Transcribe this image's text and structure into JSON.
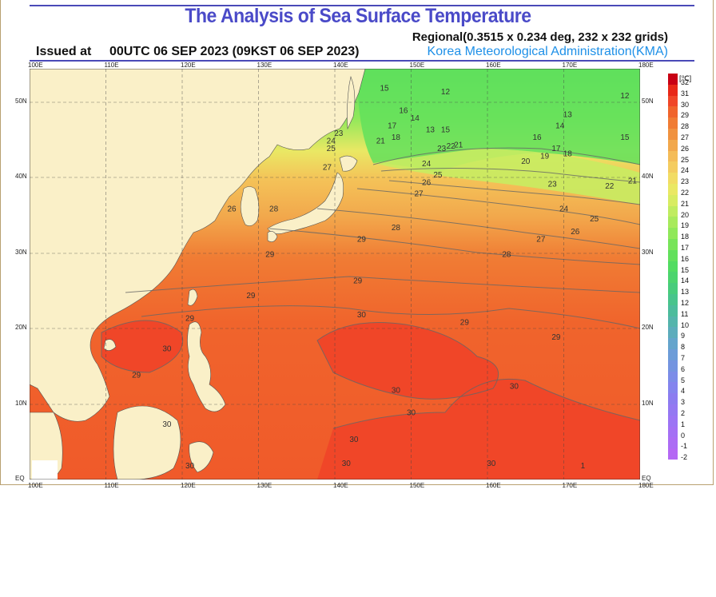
{
  "header": {
    "title": "The Analysis of Sea Surface Temperature",
    "regional": "Regional(0.3515 x 0.234 deg, 232 x 232 grids)",
    "issued_label": "Issued at",
    "issued_time": "00UTC 06 SEP 2023 (09KST 06 SEP 2023)",
    "agency": "Korea Meteorological Administration(KMA)"
  },
  "map": {
    "lon_labels": [
      "100E",
      "110E",
      "120E",
      "130E",
      "140E",
      "150E",
      "160E",
      "170E",
      "180E"
    ],
    "lat_labels_left": [
      "50N",
      "40N",
      "30N",
      "20N",
      "10N",
      "EQ"
    ],
    "lat_labels_right": [
      "50N",
      "40N",
      "30N",
      "20N",
      "10N",
      "EQ"
    ],
    "contour_labels": [
      {
        "t": "15",
        "lon": 146.5,
        "lat": 51.5
      },
      {
        "t": "16",
        "lon": 149.0,
        "lat": 48.5
      },
      {
        "t": "14",
        "lon": 150.5,
        "lat": 47.5
      },
      {
        "t": "12",
        "lon": 154.5,
        "lat": 51.0
      },
      {
        "t": "13",
        "lon": 152.5,
        "lat": 46.0
      },
      {
        "t": "15",
        "lon": 154.5,
        "lat": 46.0
      },
      {
        "t": "17",
        "lon": 147.5,
        "lat": 46.5
      },
      {
        "t": "18",
        "lon": 148.0,
        "lat": 45.0
      },
      {
        "t": "21",
        "lon": 146.0,
        "lat": 44.5
      },
      {
        "t": "23",
        "lon": 140.5,
        "lat": 45.5
      },
      {
        "t": "24",
        "lon": 139.5,
        "lat": 44.5
      },
      {
        "t": "25",
        "lon": 139.5,
        "lat": 43.5
      },
      {
        "t": "27",
        "lon": 139.0,
        "lat": 41.0
      },
      {
        "t": "23",
        "lon": 154.0,
        "lat": 43.5
      },
      {
        "t": "22",
        "lon": 155.2,
        "lat": 43.8
      },
      {
        "t": "21",
        "lon": 156.2,
        "lat": 44.0
      },
      {
        "t": "24",
        "lon": 152.0,
        "lat": 41.5
      },
      {
        "t": "25",
        "lon": 153.5,
        "lat": 40.0
      },
      {
        "t": "26",
        "lon": 152.0,
        "lat": 39.0
      },
      {
        "t": "27",
        "lon": 151.0,
        "lat": 37.5
      },
      {
        "t": "28",
        "lon": 148.0,
        "lat": 33.0
      },
      {
        "t": "29",
        "lon": 143.5,
        "lat": 31.5
      },
      {
        "t": "28",
        "lon": 132.0,
        "lat": 35.5
      },
      {
        "t": "26",
        "lon": 126.5,
        "lat": 35.5
      },
      {
        "t": "29",
        "lon": 131.5,
        "lat": 29.5
      },
      {
        "t": "13",
        "lon": 170.5,
        "lat": 48.0
      },
      {
        "t": "12",
        "lon": 178.0,
        "lat": 50.5
      },
      {
        "t": "14",
        "lon": 169.5,
        "lat": 46.5
      },
      {
        "t": "16",
        "lon": 166.5,
        "lat": 45.0
      },
      {
        "t": "15",
        "lon": 178.0,
        "lat": 45.0
      },
      {
        "t": "17",
        "lon": 169.0,
        "lat": 43.5
      },
      {
        "t": "18",
        "lon": 170.5,
        "lat": 42.8
      },
      {
        "t": "19",
        "lon": 167.5,
        "lat": 42.5
      },
      {
        "t": "20",
        "lon": 165.0,
        "lat": 41.8
      },
      {
        "t": "23",
        "lon": 168.5,
        "lat": 38.8
      },
      {
        "t": "22",
        "lon": 176.0,
        "lat": 38.5
      },
      {
        "t": "21",
        "lon": 179.0,
        "lat": 39.2
      },
      {
        "t": "24",
        "lon": 170.0,
        "lat": 35.5
      },
      {
        "t": "25",
        "lon": 174.0,
        "lat": 34.2
      },
      {
        "t": "26",
        "lon": 171.5,
        "lat": 32.5
      },
      {
        "t": "27",
        "lon": 167.0,
        "lat": 31.5
      },
      {
        "t": "28",
        "lon": 162.5,
        "lat": 29.5
      },
      {
        "t": "29",
        "lon": 143.0,
        "lat": 26.0
      },
      {
        "t": "29",
        "lon": 129.0,
        "lat": 24.0
      },
      {
        "t": "29",
        "lon": 157.0,
        "lat": 20.5
      },
      {
        "t": "29",
        "lon": 169.0,
        "lat": 18.5
      },
      {
        "t": "29",
        "lon": 121.0,
        "lat": 21.0
      },
      {
        "t": "30",
        "lon": 143.5,
        "lat": 21.5
      },
      {
        "t": "30",
        "lon": 118.0,
        "lat": 17.0
      },
      {
        "t": "29",
        "lon": 114.0,
        "lat": 13.5
      },
      {
        "t": "30",
        "lon": 148.0,
        "lat": 11.5
      },
      {
        "t": "30",
        "lon": 163.5,
        "lat": 12.0
      },
      {
        "t": "30",
        "lon": 150.0,
        "lat": 8.5
      },
      {
        "t": "30",
        "lon": 118.0,
        "lat": 7.0
      },
      {
        "t": "30",
        "lon": 142.5,
        "lat": 5.0
      },
      {
        "t": "30",
        "lon": 141.5,
        "lat": 1.8
      },
      {
        "t": "30",
        "lon": 160.5,
        "lat": 1.8
      },
      {
        "t": "30",
        "lon": 121.0,
        "lat": 1.5
      },
      {
        "t": "1",
        "lon": 172.5,
        "lat": 1.5
      }
    ]
  },
  "colorbar": {
    "unit": "[℃]",
    "labels": [
      "32",
      "31",
      "30",
      "29",
      "28",
      "27",
      "26",
      "25",
      "24",
      "23",
      "22",
      "21",
      "20",
      "19",
      "18",
      "17",
      "16",
      "15",
      "14",
      "13",
      "12",
      "11",
      "10",
      "9",
      "8",
      "7",
      "6",
      "5",
      "4",
      "3",
      "2",
      "1",
      "0",
      "-1",
      "-2"
    ],
    "colors": [
      "#c80014",
      "#e82818",
      "#f04628",
      "#f0642c",
      "#f07c34",
      "#f09240",
      "#f2a84c",
      "#f4bc58",
      "#f4cc60",
      "#f2dc64",
      "#eae864",
      "#d8ec62",
      "#c0ec60",
      "#a8ea5c",
      "#90e85a",
      "#78e45a",
      "#62e05c",
      "#52dc62",
      "#4cd46e",
      "#48cc7c",
      "#48c48c",
      "#4cbc9c",
      "#54b4ac",
      "#5cacbc",
      "#64a4cc",
      "#6c9cd8",
      "#7494e0",
      "#7c8ce8",
      "#8484ee",
      "#8c7cf0",
      "#9478f2",
      "#9c74f4",
      "#a470f4",
      "#ac6cf4",
      "#b468f4"
    ]
  }
}
